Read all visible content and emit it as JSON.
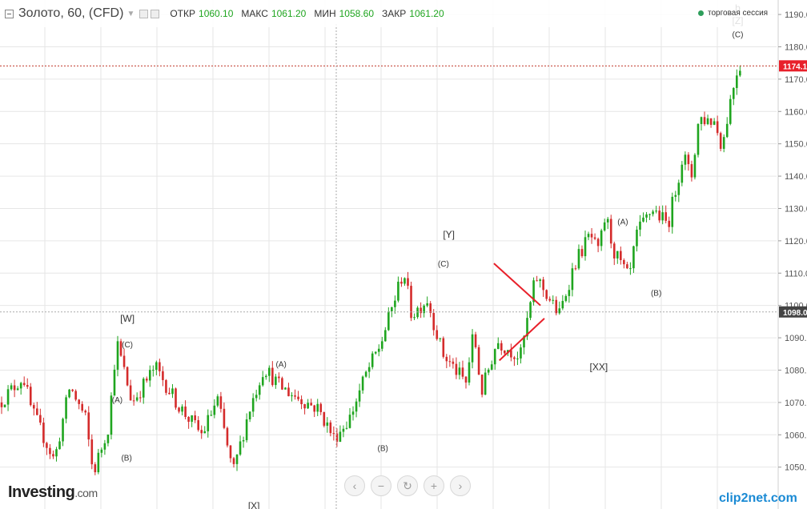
{
  "header": {
    "title": "Золото, 60, (CFD)",
    "open_label": "ОТКР",
    "open_value": "1060.10",
    "high_label": "МАКС",
    "high_value": "1061.20",
    "low_label": "МИН",
    "low_value": "1058.60",
    "close_label": "ЗАКР",
    "close_value": "1061.20",
    "session_text": "торговая сессия"
  },
  "branding": {
    "logo": "Investing",
    "logo_suffix": ".com",
    "watermark": "clip2net.com"
  },
  "nav_icons": [
    "chevron-left-icon",
    "zoom-out-icon",
    "reset-icon",
    "zoom-in-icon",
    "chevron-right-icon"
  ],
  "colors": {
    "up": "#1fa51f",
    "down": "#d42b2b",
    "price_line": "#c0392b",
    "grid": "#e6e6e6",
    "wedge": "#e8202a"
  },
  "chart_data": {
    "type": "candlestick",
    "ylim": [
      1042,
      1192
    ],
    "y_ticks": [
      1050,
      1060,
      1070,
      1080,
      1090,
      1100,
      1110,
      1120,
      1130,
      1140,
      1150,
      1160,
      1170,
      1180,
      1190
    ],
    "tick_labels": [
      "1050.0",
      "1060.0",
      "1070.0",
      "1080.0",
      "1090.0",
      "1100.0",
      "1110.0",
      "1120.0",
      "1130.0",
      "1140.0",
      "1150.0",
      "1160.0",
      "1170.0",
      "1180.0",
      "1190.0"
    ],
    "current_price_label": "1174.1",
    "crosshair_price_label": "1098.0",
    "path": [
      [
        0,
        1070
      ],
      [
        0.03,
        1078
      ],
      [
        0.04,
        1068
      ],
      [
        0.07,
        1052
      ],
      [
        0.09,
        1075
      ],
      [
        0.11,
        1065
      ],
      [
        0.12,
        1048
      ],
      [
        0.14,
        1063
      ],
      [
        0.15,
        1089
      ],
      [
        0.17,
        1070
      ],
      [
        0.2,
        1081
      ],
      [
        0.23,
        1069
      ],
      [
        0.26,
        1060
      ],
      [
        0.28,
        1071
      ],
      [
        0.3,
        1048
      ],
      [
        0.32,
        1067
      ],
      [
        0.34,
        1081
      ],
      [
        0.36,
        1075
      ],
      [
        0.38,
        1072
      ],
      [
        0.41,
        1068
      ],
      [
        0.43,
        1059
      ],
      [
        0.45,
        1065
      ],
      [
        0.47,
        1078
      ],
      [
        0.49,
        1088
      ],
      [
        0.52,
        1111
      ],
      [
        0.53,
        1097
      ],
      [
        0.55,
        1102
      ],
      [
        0.57,
        1085
      ],
      [
        0.6,
        1076
      ],
      [
        0.61,
        1092
      ],
      [
        0.62,
        1073
      ],
      [
        0.64,
        1089
      ],
      [
        0.67,
        1084
      ],
      [
        0.69,
        1109
      ],
      [
        0.72,
        1097
      ],
      [
        0.74,
        1113
      ],
      [
        0.76,
        1122
      ],
      [
        0.77,
        1116
      ],
      [
        0.78,
        1128
      ],
      [
        0.79,
        1117
      ],
      [
        0.81,
        1108
      ],
      [
        0.82,
        1122
      ],
      [
        0.84,
        1130
      ],
      [
        0.86,
        1125
      ],
      [
        0.88,
        1147
      ],
      [
        0.89,
        1139
      ],
      [
        0.9,
        1158
      ],
      [
        0.92,
        1157
      ],
      [
        0.93,
        1149
      ],
      [
        0.94,
        1163
      ],
      [
        0.95,
        1174
      ]
    ],
    "wave_labels": [
      {
        "text": "[W]",
        "x": 0.164,
        "y": 1095
      },
      {
        "text": "(C)",
        "x": 0.164,
        "y": 1087
      },
      {
        "text": "(A)",
        "x": 0.151,
        "y": 1070
      },
      {
        "text": "(B)",
        "x": 0.163,
        "y": 1052
      },
      {
        "text": "[X]",
        "x": 0.327,
        "y": 1037
      },
      {
        "text": "(A)",
        "x": 0.362,
        "y": 1081
      },
      {
        "text": "(B)",
        "x": 0.493,
        "y": 1055
      },
      {
        "text": "[Y]",
        "x": 0.578,
        "y": 1121
      },
      {
        "text": "(C)",
        "x": 0.571,
        "y": 1112
      },
      {
        "text": "[XX]",
        "x": 0.771,
        "y": 1080
      },
      {
        "text": "(A)",
        "x": 0.802,
        "y": 1125
      },
      {
        "text": "(B)",
        "x": 0.845,
        "y": 1103
      },
      {
        "text": "b",
        "x": 0.95,
        "y": 1191
      },
      {
        "text": "[Z]",
        "x": 0.95,
        "y": 1187
      },
      {
        "text": "(C)",
        "x": 0.95,
        "y": 1183
      }
    ]
  }
}
